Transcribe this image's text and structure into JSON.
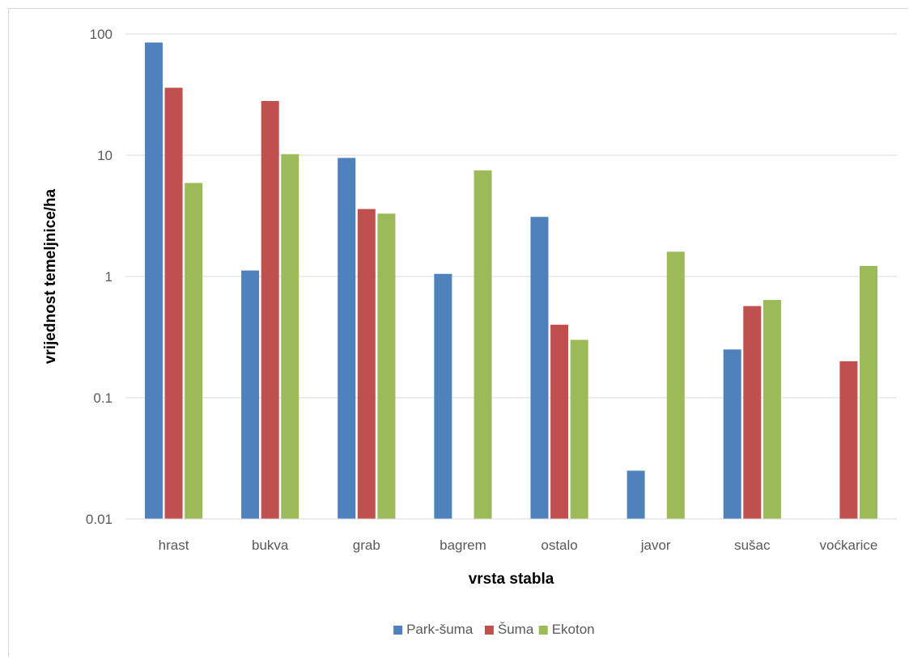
{
  "chart_data": {
    "type": "bar",
    "title": "",
    "xlabel": "vrsta stabla",
    "ylabel": "vrijednost temeljnice/ha",
    "yscale": "log",
    "ylim": [
      0.01,
      100
    ],
    "yticks": [
      0.01,
      0.1,
      1,
      10,
      100
    ],
    "ytick_labels": [
      "0.01",
      "0.1",
      "1",
      "10",
      "100"
    ],
    "grid": true,
    "legend_position": "bottom",
    "categories": [
      "hrast",
      "bukva",
      "grab",
      "bagrem",
      "ostalo",
      "javor",
      "sušac",
      "voćkarice"
    ],
    "series": [
      {
        "name": "Park-šuma",
        "color": "#4f81bd",
        "values": [
          85,
          1.12,
          9.5,
          1.05,
          3.1,
          0.025,
          0.25,
          null
        ]
      },
      {
        "name": "Šuma",
        "color": "#c0504d",
        "values": [
          36,
          28,
          3.6,
          null,
          0.4,
          null,
          0.57,
          0.2
        ]
      },
      {
        "name": "Ekoton",
        "color": "#9bbb59",
        "values": [
          5.9,
          10.2,
          3.3,
          7.5,
          0.3,
          1.6,
          0.64,
          1.22
        ]
      }
    ]
  }
}
